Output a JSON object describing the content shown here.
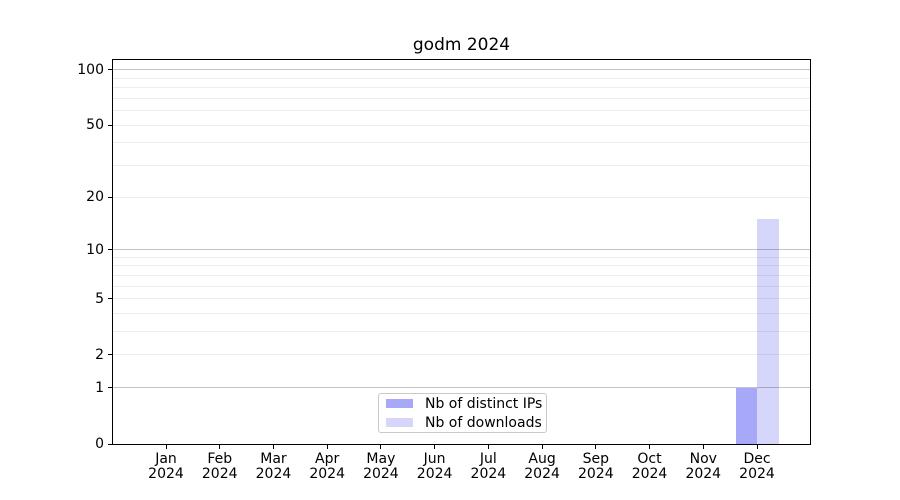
{
  "chart_data": {
    "type": "bar",
    "title": "godm 2024",
    "xlabel": "",
    "ylabel": "",
    "yscale": "log1p",
    "ylim": [
      0,
      113
    ],
    "grid": true,
    "categories": [
      "Jan 2024",
      "Feb 2024",
      "Mar 2024",
      "Apr 2024",
      "May 2024",
      "Jun 2024",
      "Jul 2024",
      "Aug 2024",
      "Sep 2024",
      "Oct 2024",
      "Nov 2024",
      "Dec 2024"
    ],
    "series": [
      {
        "name": "Nb of distinct IPs",
        "color": "rgba(0,0,235,0.34)",
        "values": [
          0,
          0,
          0,
          0,
          0,
          0,
          0,
          0,
          0,
          0,
          0,
          1
        ]
      },
      {
        "name": "Nb of downloads",
        "color": "rgba(0,0,222,0.16)",
        "values": [
          0,
          0,
          0,
          0,
          0,
          0,
          0,
          0,
          0,
          0,
          0,
          15
        ]
      }
    ],
    "yticks": [
      100,
      50,
      20,
      10,
      5,
      2,
      1,
      0
    ],
    "major_gridlines": [
      1,
      10,
      100
    ],
    "minor_gridlines": [
      2,
      3,
      4,
      5,
      6,
      7,
      8,
      9,
      20,
      30,
      40,
      50,
      60,
      70,
      80,
      90
    ],
    "legend_position": "lower center"
  },
  "colors": {
    "major_grid": "#c4c4c4",
    "minor_grid": "#ededed",
    "axis": "#000000",
    "tick_label": "#000000",
    "legend_border": "#c9c9c9"
  }
}
